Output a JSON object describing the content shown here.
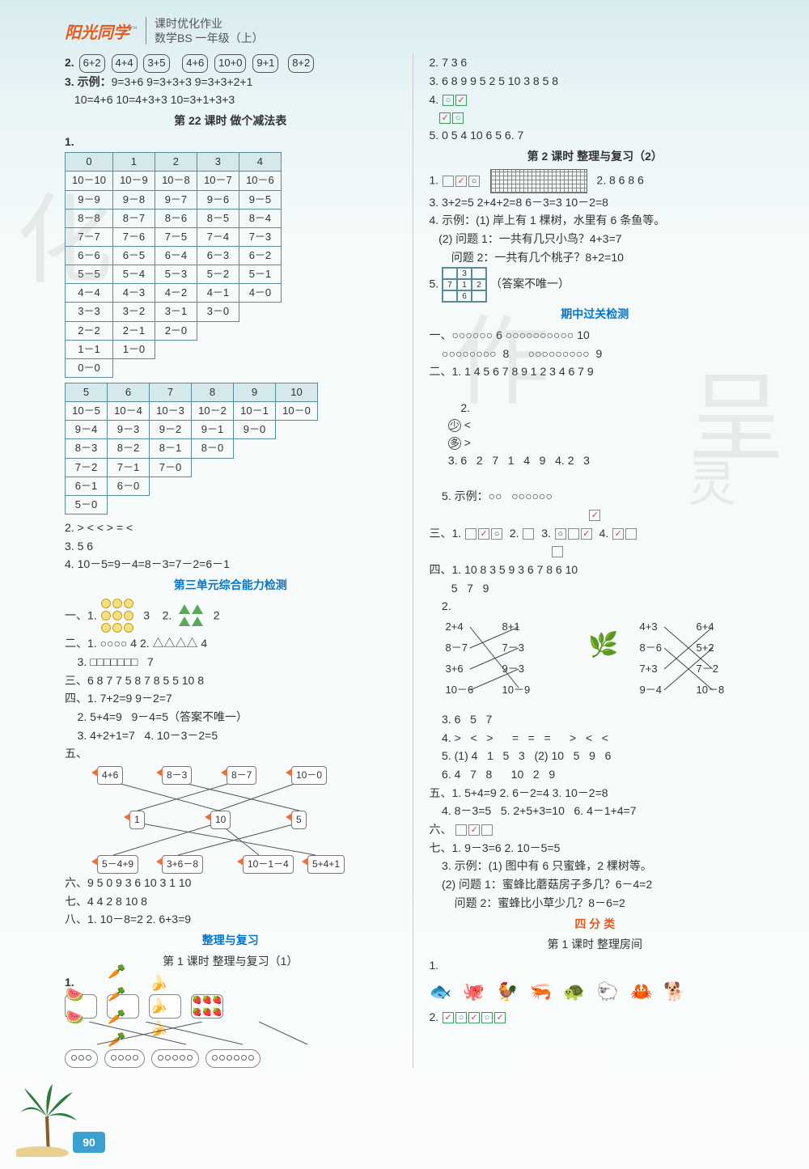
{
  "header": {
    "logo": "阳光同学",
    "line1": "课时优化作业",
    "line2": "数学BS 一年级（上）"
  },
  "page_number": "90",
  "left": {
    "q2_label": "2.",
    "q2_boxes": [
      "6+2",
      "4+4",
      "3+5",
      "4+6",
      "10+0",
      "9+1",
      "8+2"
    ],
    "q3_label": "3. 示例：",
    "q3_lines": [
      "9=3+6   9=3+3+3   9=3+3+2+1",
      "10=4+6   10=4+3+3   10=3+1+3+3"
    ],
    "s22_title": "第 22 课时   做个减法表",
    "table1": {
      "headers": [
        "0",
        "1",
        "2",
        "3",
        "4"
      ],
      "rows": [
        [
          "10－10",
          "10－9",
          "10－8",
          "10－7",
          "10－6"
        ],
        [
          "9－9",
          "9－8",
          "9－7",
          "9－6",
          "9－5"
        ],
        [
          "8－8",
          "8－7",
          "8－6",
          "8－5",
          "8－4"
        ],
        [
          "7－7",
          "7－6",
          "7－5",
          "7－4",
          "7－3"
        ],
        [
          "6－6",
          "6－5",
          "6－4",
          "6－3",
          "6－2"
        ],
        [
          "5－5",
          "5－4",
          "5－3",
          "5－2",
          "5－1"
        ],
        [
          "4－4",
          "4－3",
          "4－2",
          "4－1",
          "4－0"
        ],
        [
          "3－3",
          "3－2",
          "3－1",
          "3－0",
          ""
        ],
        [
          "2－2",
          "2－1",
          "2－0",
          "",
          ""
        ],
        [
          "1－1",
          "1－0",
          "",
          "",
          ""
        ],
        [
          "0－0",
          "",
          "",
          "",
          ""
        ]
      ]
    },
    "table2": {
      "headers": [
        "5",
        "6",
        "7",
        "8",
        "9",
        "10"
      ],
      "rows": [
        [
          "10－5",
          "10－4",
          "10－3",
          "10－2",
          "10－1",
          "10－0"
        ],
        [
          "9－4",
          "9－3",
          "9－2",
          "9－1",
          "9－0",
          ""
        ],
        [
          "8－3",
          "8－2",
          "8－1",
          "8－0",
          "",
          ""
        ],
        [
          "7－2",
          "7－1",
          "7－0",
          "",
          "",
          ""
        ],
        [
          "6－1",
          "6－0",
          "",
          "",
          "",
          ""
        ],
        [
          "5－0",
          "",
          "",
          "",
          "",
          ""
        ]
      ]
    },
    "q2b": "2. >   <   <      >   =   <",
    "q3b": "3. 5   6",
    "q4b": "4. 10－5=9－4=8－3=7－2=6－1",
    "unit3_title": "第三单元综合能力检测",
    "u3_1_1": "一、1.",
    "u3_1_1_val": "3",
    "u3_1_2": "2.",
    "u3_1_2_val": "2",
    "u3_2": "二、1. ○○○○   4   2. △△△△   4",
    "u3_2_3": "    3. □□□□□□□   7",
    "u3_3": "三、6   8   7   7      5   8   7   8      5   5   10   8",
    "u3_4_1": "四、1. 7+2=9   9－2=7",
    "u3_4_2": "    2. 5+4=9   9－4=5（答案不唯一）",
    "u3_4_3": "    3. 4+2+1=7   4. 10－3－2=5",
    "u3_5": "五、",
    "match_top": [
      "4+6",
      "8－3",
      "8－7",
      "10－0"
    ],
    "match_mid": [
      "1",
      "10",
      "5"
    ],
    "match_bot": [
      "5－4+9",
      "3+6－8",
      "10－1－4",
      "5+4+1"
    ],
    "u3_6": "六、9   5   0   9   3      6   10   3   1   10",
    "u3_7": "七、4   4   2      8   10   8",
    "u3_8": "八、1. 10－8=2   2. 6+3=9",
    "review_title": "整理与复习",
    "review_sub": "第 1 课时   整理与复习（1）",
    "r1_label": "1.",
    "ovals": [
      3,
      4,
      5,
      6
    ]
  },
  "right": {
    "r2": "2. 7   3   6",
    "r3": "3. 6   8   9   9      5   2   5   10      3   8   5   8",
    "r4": "4.",
    "r5": "5. 0   5   4      10   6   5   6. 7",
    "review2_title": "第 2 课时   整理与复习（2）",
    "rv2_1": "1.",
    "rv2_1b": "2. 8   6   8   6",
    "rv2_3": "3. 3+2=5   2+4+2=8   6－3=3   10－2=8",
    "rv2_4_1": "4. 示例：(1) 岸上有 1 棵树，水里有 6 条鱼等。",
    "rv2_4_2": "   (2) 问题 1：一共有几只小鸟？4+3=7",
    "rv2_4_3": "       问题 2：一共有几个桃子？8+2=10",
    "rv2_5": "5.",
    "rv2_5_note": "（答案不唯一）",
    "grid": [
      [
        "",
        "3",
        ""
      ],
      [
        "7",
        "1",
        "2"
      ],
      [
        "",
        "6",
        ""
      ]
    ],
    "midterm_title": "期中过关检测",
    "m1": "一、○○○○○○  6      ○○○○○○○○○○  10",
    "m1b": "    ○○○○○○○○  8      ○○○○○○○○○  9",
    "m2_1": "二、1. 1   4   5   6   7   8   9      1   2   3   4   6   7   9",
    "m2_2": "    2.",
    "m2_2_vals": [
      "少",
      " < ",
      "多",
      " > "
    ],
    "m2_2b": "3. 6   2   7   1   4   9   4. 2   3",
    "m2_5": "    5. 示例：○○   ○○○○○○",
    "m3": "三、1.",
    "m3_2": "2.",
    "m3_3": "3.",
    "m3_4": "4.",
    "m4_1": "四、1. 10   8   3   5      9   3   6   7      8   6   10",
    "m4_1b": "       5   7   9",
    "m4_2": "    2.",
    "match2_l1": [
      "2+4",
      "8+1",
      "4+3",
      "6+4"
    ],
    "match2_l2": [
      "8－7",
      "7－3",
      "8－6",
      "5+2"
    ],
    "match2_l3": [
      "3+6",
      "9－3",
      "7+3",
      "7－2"
    ],
    "match2_l4": [
      "10－6",
      "10－9",
      "9－4",
      "10－8"
    ],
    "m4_3": "    3. 6   5   7",
    "m4_4": "    4. >   <   >      =   =   =      >   <   <",
    "m4_5": "    5. (1) 4   1   5   3   (2) 10   5   9   6",
    "m4_6": "    6. 4   7   8      10   2   9",
    "m5": "五、1. 5+4=9   2. 6－2=4   3. 10－2=8",
    "m5b": "    4. 8－3=5   5. 2+5+3=10   6. 4－1+4=7",
    "m6": "六、",
    "m7_1": "七、1. 9－3=6   2. 10－5=5",
    "m7_3a": "    3. 示例：(1) 图中有 6 只蜜蜂，2 棵树等。",
    "m7_3b": "    (2) 问题 1：蜜蜂比蘑菇房子多几？6－4=2",
    "m7_3c": "        问题 2：蜜蜂比小草少几？8－6=2",
    "cat_title": "四  分  类",
    "cat_sub": "第 1 课时   整理房间",
    "cat_1": "1.",
    "cat_2": "2."
  }
}
